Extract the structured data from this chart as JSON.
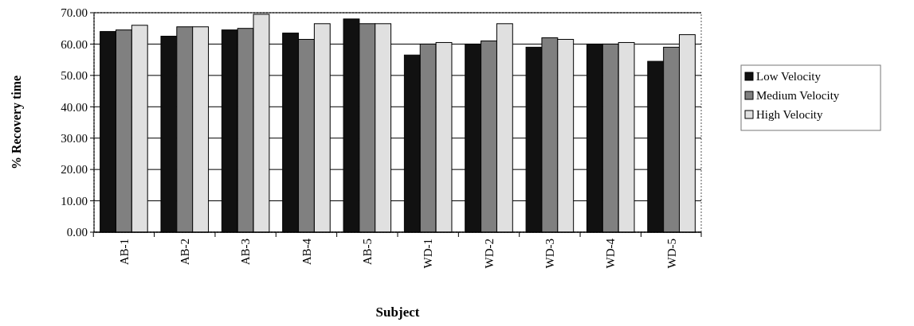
{
  "chart_data": {
    "type": "bar",
    "xlabel": "Subject",
    "ylabel": "% Recovery time",
    "categories": [
      "AB-1",
      "AB-2",
      "AB-3",
      "AB-4",
      "AB-5",
      "WD-1",
      "WD-2",
      "WD-3",
      "WD-4",
      "WD-5"
    ],
    "series": [
      {
        "name": "Low Velocity",
        "color": "#111111",
        "values": [
          64,
          62.5,
          64.5,
          63.5,
          68,
          56.5,
          60,
          59,
          60,
          54.5
        ]
      },
      {
        "name": "Medium Velocity",
        "color": "#808080",
        "values": [
          64.5,
          65.5,
          65,
          61.5,
          66.5,
          60,
          61,
          62,
          60,
          59
        ]
      },
      {
        "name": "High Velocity",
        "color": "#e0e0e0",
        "values": [
          66,
          65.5,
          69.5,
          66.5,
          66.5,
          60.5,
          66.5,
          61.5,
          60.5,
          63
        ]
      }
    ],
    "ylim": [
      0,
      70
    ],
    "yticks": [
      {
        "value": 0,
        "label": "0.00"
      },
      {
        "value": 10,
        "label": "10.00"
      },
      {
        "value": 20,
        "label": "20.00"
      },
      {
        "value": 30,
        "label": "30.00"
      },
      {
        "value": 40,
        "label": "40.00"
      },
      {
        "value": 50,
        "label": "50.00"
      },
      {
        "value": 60,
        "label": "60.00"
      },
      {
        "value": 70,
        "label": "70.00"
      }
    ],
    "grid": "y",
    "legend": "right"
  }
}
